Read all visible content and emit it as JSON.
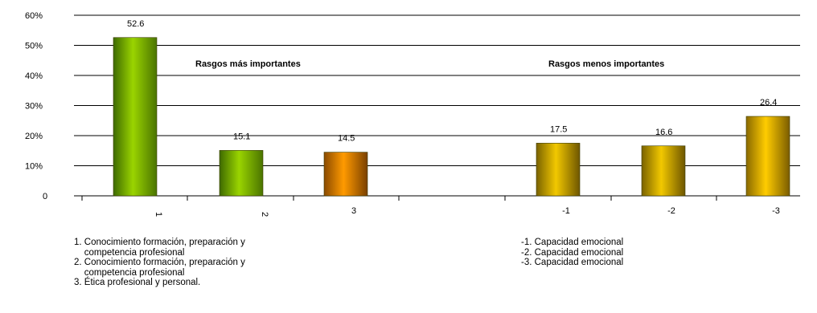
{
  "chart_data": {
    "type": "bar",
    "categories": [
      "1",
      "2",
      "3",
      "-1",
      "-2",
      "-3"
    ],
    "values": [
      52.6,
      15.1,
      14.5,
      17.5,
      16.6,
      26.4
    ],
    "value_labels": [
      "52.6",
      "15.1",
      "14.5",
      "17.5",
      "16.6",
      "26.4"
    ],
    "y_ticks": [
      "0",
      "10%",
      "20%",
      "30%",
      "40%",
      "50%",
      "60%"
    ],
    "ylim": [
      0,
      60
    ],
    "grid": true,
    "bar_colors": [
      "#8cc400",
      "#8cc400",
      "#f29400",
      "#e8be00",
      "#e8be00",
      "#f2c400"
    ],
    "annotations": [
      "Rasgos más importantes",
      "Rasgos menos importantes"
    ]
  },
  "notes_left": [
    "1. Conocimiento formación, preparación y",
    "    competencia profesional",
    "2. Conocimiento formación, preparación y",
    "    competencia profesional",
    "3. Ética profesional y personal."
  ],
  "notes_right": [
    "-1. Capacidad emocional",
    "-2. Capacidad emocional",
    "-3. Capacidad emocional"
  ]
}
